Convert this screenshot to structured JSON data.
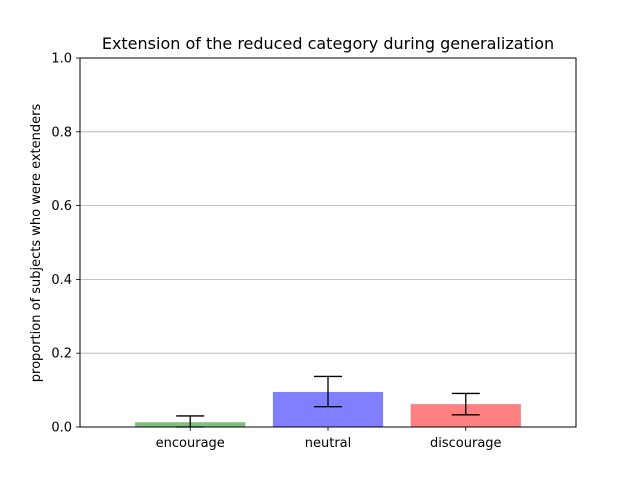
{
  "chart_data": {
    "type": "bar",
    "title": "Extension of the reduced category during generalization",
    "xlabel": "",
    "ylabel": "proportion of subjects who were extenders",
    "categories": [
      "encourage",
      "neutral",
      "discourage"
    ],
    "values": [
      0.013,
      0.095,
      0.062
    ],
    "error_low": [
      0.0,
      0.055,
      0.033
    ],
    "error_high": [
      0.03,
      0.137,
      0.091
    ],
    "colors": [
      "#7fbf7f",
      "#8080ff",
      "#ff8080"
    ],
    "ylim": [
      0.0,
      1.0
    ],
    "yticks": [
      "0.0",
      "0.2",
      "0.4",
      "0.6",
      "0.8",
      "1.0"
    ],
    "grid": "horizontal",
    "legend": "none"
  }
}
